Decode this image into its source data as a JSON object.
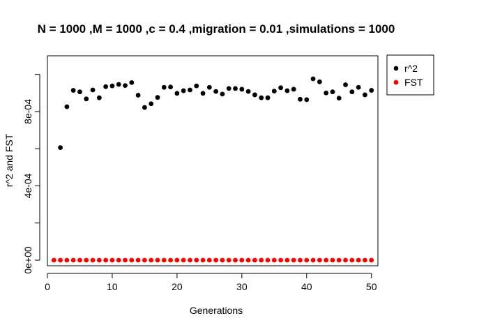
{
  "chart_data": {
    "type": "scatter",
    "title": "N = 1000 ,M = 1000 ,c = 0.4 ,migration = 0.01 ,simulations = 1000",
    "xlabel": "Generations",
    "ylabel": "r^2 and FST",
    "xlim": [
      0,
      51
    ],
    "ylim": [
      -3e-05,
      0.0011
    ],
    "x_ticks": [
      0,
      10,
      20,
      30,
      40,
      50
    ],
    "x_tick_labels": [
      "0",
      "10",
      "20",
      "30",
      "40",
      "50"
    ],
    "y_ticks": [
      0,
      0.0004,
      0.0008
    ],
    "y_tick_labels": [
      "0e+00",
      "4e-04",
      "8e-04"
    ],
    "y_minor_ticks": [
      0.0002,
      0.0006,
      0.001
    ],
    "grid": false,
    "legend": {
      "position": "top-right",
      "entries": [
        "r^2",
        "FST"
      ]
    },
    "x": [
      1,
      2,
      3,
      4,
      5,
      6,
      7,
      8,
      9,
      10,
      11,
      12,
      13,
      14,
      15,
      16,
      17,
      18,
      19,
      20,
      21,
      22,
      23,
      24,
      25,
      26,
      27,
      28,
      29,
      30,
      31,
      32,
      33,
      34,
      35,
      36,
      37,
      38,
      39,
      40,
      41,
      42,
      43,
      44,
      45,
      46,
      47,
      48,
      49,
      50
    ],
    "series": [
      {
        "name": "r^2",
        "color": "#000000",
        "values": [
          null,
          0.000606,
          0.000826,
          0.000914,
          0.000906,
          0.000868,
          0.000916,
          0.000874,
          0.000934,
          0.000938,
          0.000946,
          0.00094,
          0.000956,
          0.000888,
          0.000822,
          0.000842,
          0.000876,
          0.00093,
          0.000932,
          0.000898,
          0.000912,
          0.000916,
          0.000938,
          0.000898,
          0.00093,
          0.000908,
          0.000894,
          0.000924,
          0.000924,
          0.00092,
          0.000908,
          0.00089,
          0.000874,
          0.000874,
          0.00091,
          0.000928,
          0.000912,
          0.00092,
          0.000866,
          0.000864,
          0.000976,
          0.00096,
          0.0009,
          0.000906,
          0.000872,
          0.000944,
          0.000906,
          0.00093,
          0.00089,
          0.000914
        ]
      },
      {
        "name": "FST",
        "color": "#ff0000",
        "values": [
          0,
          0,
          0,
          0,
          0,
          0,
          0,
          0,
          0,
          0,
          0,
          0,
          0,
          0,
          0,
          0,
          0,
          0,
          0,
          0,
          0,
          0,
          0,
          0,
          0,
          0,
          0,
          0,
          0,
          0,
          0,
          0,
          0,
          0,
          0,
          0,
          0,
          0,
          0,
          0,
          0,
          0,
          0,
          0,
          0,
          0,
          0,
          0,
          0,
          0
        ]
      }
    ]
  }
}
